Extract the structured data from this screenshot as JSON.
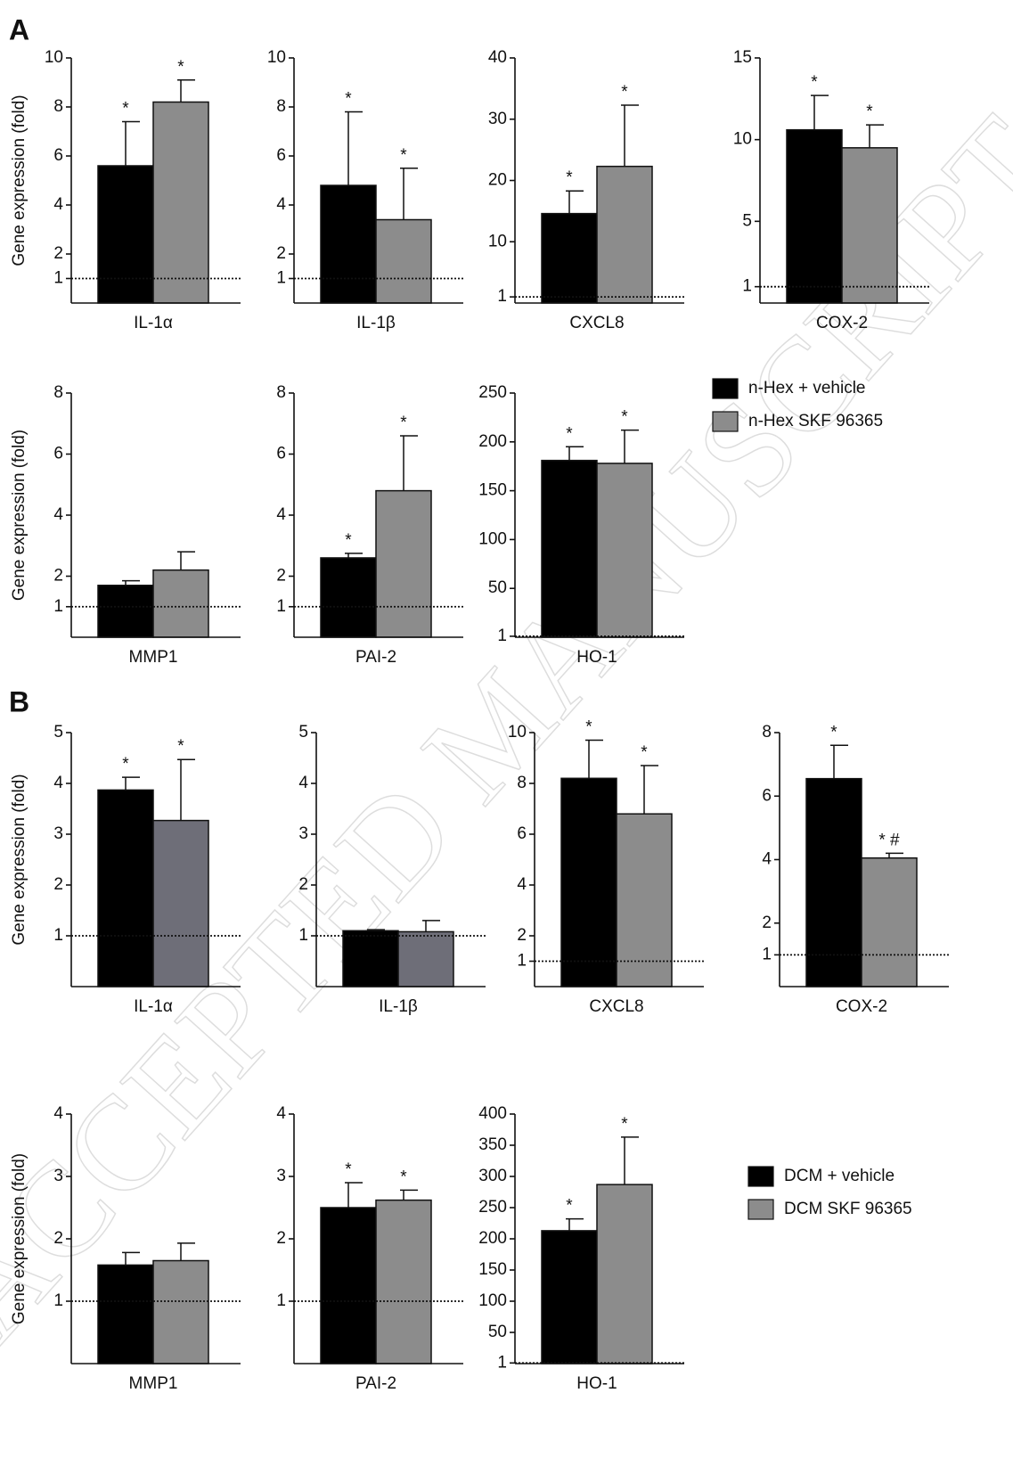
{
  "watermark": "ACCEPTED MANUSCRIPT",
  "chart_data": [
    {
      "type": "bar",
      "panel": "A",
      "ylabel": "Gene expression (fold)",
      "categories": [
        "IL-1α"
      ],
      "ylim": [
        0,
        10
      ],
      "yticks": [
        1,
        2,
        4,
        6,
        8,
        10
      ],
      "reference_line": 1,
      "series": [
        {
          "color": "#000000",
          "values": [
            5.6
          ],
          "errors": [
            1.8
          ],
          "labels": [
            "*"
          ]
        },
        {
          "color": "#8c8c8c",
          "values": [
            8.2
          ],
          "errors": [
            0.9
          ],
          "labels": [
            "*"
          ]
        }
      ]
    },
    {
      "type": "bar",
      "categories": [
        "IL-1β"
      ],
      "ylim": [
        0,
        10
      ],
      "yticks": [
        1,
        2,
        4,
        6,
        8,
        10
      ],
      "reference_line": 1,
      "series": [
        {
          "color": "#000000",
          "values": [
            4.8
          ],
          "errors": [
            3.0
          ],
          "labels": [
            "*"
          ]
        },
        {
          "color": "#8c8c8c",
          "values": [
            3.4
          ],
          "errors": [
            2.1
          ],
          "labels": [
            "*"
          ]
        }
      ]
    },
    {
      "type": "bar",
      "categories": [
        "CXCL8"
      ],
      "ylim": [
        0,
        40
      ],
      "yticks": [
        1,
        10,
        20,
        30,
        40
      ],
      "reference_line": 1,
      "series": [
        {
          "color": "#000000",
          "values": [
            14.6
          ],
          "errors": [
            3.7
          ],
          "labels": [
            "*"
          ]
        },
        {
          "color": "#8c8c8c",
          "values": [
            22.3
          ],
          "errors": [
            10.0
          ],
          "labels": [
            "*"
          ]
        }
      ]
    },
    {
      "type": "bar",
      "categories": [
        "COX-2"
      ],
      "ylim": [
        0,
        15
      ],
      "yticks": [
        1,
        5,
        10,
        15
      ],
      "reference_line": 1,
      "series": [
        {
          "color": "#000000",
          "values": [
            10.6
          ],
          "errors": [
            2.1
          ],
          "labels": [
            "*"
          ]
        },
        {
          "color": "#8c8c8c",
          "values": [
            9.5
          ],
          "errors": [
            1.4
          ],
          "labels": [
            "*"
          ]
        }
      ]
    },
    {
      "type": "bar",
      "ylabel": "Gene expression (fold)",
      "categories": [
        "MMP1"
      ],
      "ylim": [
        0,
        8
      ],
      "yticks": [
        1,
        2,
        4,
        6,
        8
      ],
      "reference_line": 1,
      "series": [
        {
          "color": "#000000",
          "values": [
            1.7
          ],
          "errors": [
            0.15
          ]
        },
        {
          "color": "#8c8c8c",
          "values": [
            2.2
          ],
          "errors": [
            0.6
          ]
        }
      ]
    },
    {
      "type": "bar",
      "categories": [
        "PAI-2"
      ],
      "ylim": [
        0,
        8
      ],
      "yticks": [
        1,
        2,
        4,
        6,
        8
      ],
      "reference_line": 1,
      "series": [
        {
          "color": "#000000",
          "values": [
            2.6
          ],
          "errors": [
            0.15
          ],
          "labels": [
            "*"
          ]
        },
        {
          "color": "#8c8c8c",
          "values": [
            4.8
          ],
          "errors": [
            1.8
          ],
          "labels": [
            "*"
          ]
        }
      ]
    },
    {
      "type": "bar",
      "categories": [
        "HO-1"
      ],
      "ylim": [
        0,
        250
      ],
      "yticks": [
        1,
        50,
        100,
        150,
        200,
        250
      ],
      "reference_line": 1,
      "series": [
        {
          "name": "n-Hex + vehicle",
          "color": "#000000",
          "values": [
            181
          ],
          "errors": [
            14
          ],
          "labels": [
            "*"
          ]
        },
        {
          "name": "n-Hex SKF 96365",
          "color": "#8c8c8c",
          "values": [
            178
          ],
          "errors": [
            34
          ],
          "labels": [
            "*"
          ]
        }
      ]
    },
    {
      "type": "bar",
      "panel": "B",
      "ylabel": "Gene expression (fold)",
      "categories": [
        "IL-1α"
      ],
      "ylim": [
        0,
        5
      ],
      "yticks": [
        1,
        2,
        3,
        4,
        5
      ],
      "reference_line": 1,
      "series": [
        {
          "color": "#000000",
          "values": [
            3.87
          ],
          "errors": [
            0.25
          ],
          "labels": [
            "*"
          ]
        },
        {
          "color": "#6e6e78",
          "values": [
            3.27
          ],
          "errors": [
            1.2
          ],
          "labels": [
            "*"
          ]
        }
      ]
    },
    {
      "type": "bar",
      "categories": [
        "IL-1β"
      ],
      "ylim": [
        0,
        5
      ],
      "yticks": [
        1,
        2,
        3,
        4,
        5
      ],
      "reference_line": 1,
      "series": [
        {
          "color": "#000000",
          "values": [
            1.1
          ],
          "errors": [
            0.02
          ]
        },
        {
          "color": "#6e6e78",
          "values": [
            1.08
          ],
          "errors": [
            0.22
          ]
        }
      ]
    },
    {
      "type": "bar",
      "categories": [
        "CXCL8"
      ],
      "ylim": [
        0,
        10
      ],
      "yticks": [
        1,
        2,
        4,
        6,
        8,
        10
      ],
      "reference_line": 1,
      "series": [
        {
          "color": "#000000",
          "values": [
            8.2
          ],
          "errors": [
            1.5
          ],
          "labels": [
            "*"
          ]
        },
        {
          "color": "#8c8c8c",
          "values": [
            6.8
          ],
          "errors": [
            1.9
          ],
          "labels": [
            "*"
          ]
        }
      ]
    },
    {
      "type": "bar",
      "categories": [
        "COX-2"
      ],
      "ylim": [
        0,
        8
      ],
      "yticks": [
        1,
        2,
        4,
        6,
        8
      ],
      "reference_line": 1,
      "series": [
        {
          "color": "#000000",
          "values": [
            6.55
          ],
          "errors": [
            1.05
          ],
          "labels": [
            "*"
          ]
        },
        {
          "color": "#8c8c8c",
          "values": [
            4.05
          ],
          "errors": [
            0.15
          ],
          "labels": [
            "* #"
          ]
        }
      ]
    },
    {
      "type": "bar",
      "ylabel": "Gene expression (fold)",
      "categories": [
        "MMP1"
      ],
      "ylim": [
        0,
        4
      ],
      "yticks": [
        1,
        2,
        3,
        4
      ],
      "reference_line": 1,
      "series": [
        {
          "color": "#000000",
          "values": [
            1.58
          ],
          "errors": [
            0.2
          ]
        },
        {
          "color": "#8c8c8c",
          "values": [
            1.65
          ],
          "errors": [
            0.28
          ]
        }
      ]
    },
    {
      "type": "bar",
      "categories": [
        "PAI-2"
      ],
      "ylim": [
        0,
        4
      ],
      "yticks": [
        1,
        2,
        3,
        4
      ],
      "reference_line": 1,
      "series": [
        {
          "color": "#000000",
          "values": [
            2.5
          ],
          "errors": [
            0.4
          ],
          "labels": [
            "*"
          ]
        },
        {
          "color": "#8c8c8c",
          "values": [
            2.62
          ],
          "errors": [
            0.16
          ],
          "labels": [
            "*"
          ]
        }
      ]
    },
    {
      "type": "bar",
      "categories": [
        "HO-1"
      ],
      "ylim": [
        0,
        400
      ],
      "yticks": [
        1,
        50,
        100,
        150,
        200,
        250,
        300,
        350,
        400
      ],
      "reference_line": 1,
      "series": [
        {
          "name": "DCM + vehicle",
          "color": "#000000",
          "values": [
            213
          ],
          "errors": [
            19
          ],
          "labels": [
            "*"
          ]
        },
        {
          "name": "DCM SKF 96365",
          "color": "#8c8c8c",
          "values": [
            287
          ],
          "errors": [
            76
          ],
          "labels": [
            "*"
          ]
        }
      ]
    }
  ]
}
